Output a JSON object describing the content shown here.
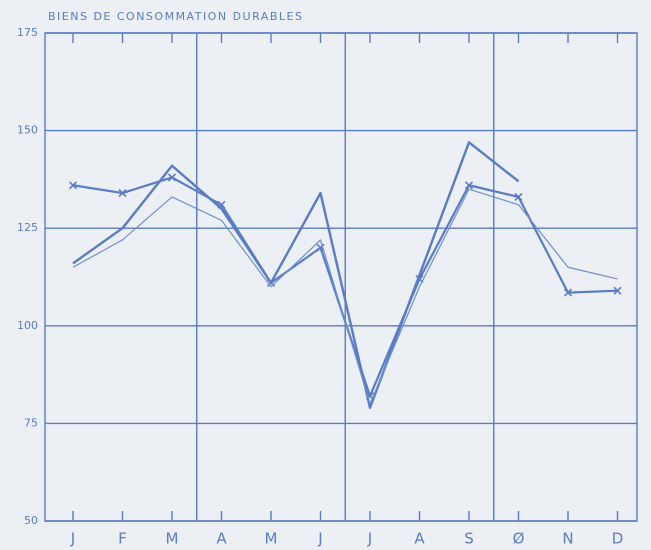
{
  "chart_data": {
    "type": "line",
    "title": "BIENS DE CONSOMMATION DURABLES",
    "categories": [
      "J",
      "F",
      "M",
      "A",
      "M",
      "J",
      "J",
      "A",
      "S",
      "Ø",
      "N",
      "D"
    ],
    "series": [
      {
        "color": "#5a7cc4",
        "markers": true,
        "width": 2.2,
        "values": [
          136,
          134,
          138,
          131,
          111,
          120,
          82,
          112,
          136,
          133,
          108.5,
          109
        ]
      },
      {
        "color": "#5a7cc4",
        "markers": false,
        "width": 2.4,
        "values": [
          116,
          125,
          141,
          130,
          111,
          134,
          79,
          113,
          147,
          137,
          null,
          null
        ]
      },
      {
        "color": "#6f8ed0",
        "markers": false,
        "width": 1.2,
        "values": [
          115,
          122,
          133,
          127,
          110,
          122,
          80,
          110,
          135,
          131,
          115,
          112
        ]
      }
    ],
    "ylim": [
      50,
      175
    ],
    "yticks": [
      50,
      75,
      100,
      125,
      150,
      175
    ],
    "grid": true
  }
}
